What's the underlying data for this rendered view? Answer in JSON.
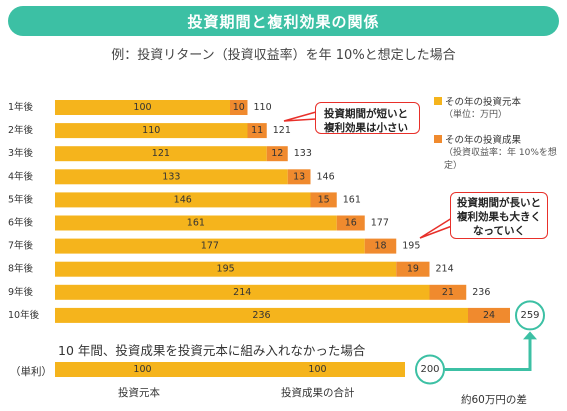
{
  "title": "投資期間と複利効果の関係",
  "subtitle": "例：投資リターン（投資収益率）を年 10%と想定した場合",
  "colors": {
    "title_bg": "#3cc0a4",
    "principal": "#f5b41c",
    "gain": "#f08a2e",
    "callout_border": "#e8302a",
    "circle_border": "#3cc0a4",
    "arrow": "#3cc0a4"
  },
  "legend": {
    "principal": "その年の投資元本",
    "principal_note": "（単位：万円）",
    "gain": "その年の投資成果",
    "gain_note": "（投資収益率：年 10%を想定）"
  },
  "callouts": {
    "short": [
      "投資期間が短いと",
      "複利効果は小さい"
    ],
    "long": [
      "投資期間が長いと",
      "複利効果も大きく",
      "なっていく"
    ]
  },
  "chart_data": {
    "type": "bar",
    "stacked": true,
    "orientation": "horizontal",
    "categories": [
      "1年後",
      "2年後",
      "3年後",
      "4年後",
      "5年後",
      "6年後",
      "7年後",
      "8年後",
      "9年後",
      "10年後"
    ],
    "series": [
      {
        "name": "その年の投資元本",
        "values": [
          100,
          110,
          121,
          133,
          146,
          161,
          177,
          195,
          214,
          236
        ]
      },
      {
        "name": "その年の投資成果",
        "values": [
          10,
          11,
          12,
          13,
          15,
          16,
          18,
          19,
          21,
          24
        ]
      }
    ],
    "totals": [
      110,
      121,
      133,
      146,
      161,
      177,
      195,
      214,
      236,
      259
    ],
    "simple_interest": {
      "label": "10 年間、投資成果を投資元本に組み入れなかった場合",
      "row_label": "（単利）",
      "principal": 100,
      "gain": 100,
      "total": 200,
      "principal_caption": "投資元本",
      "gain_caption": "投資成果の合計"
    },
    "difference_label": "約60万円の差"
  }
}
